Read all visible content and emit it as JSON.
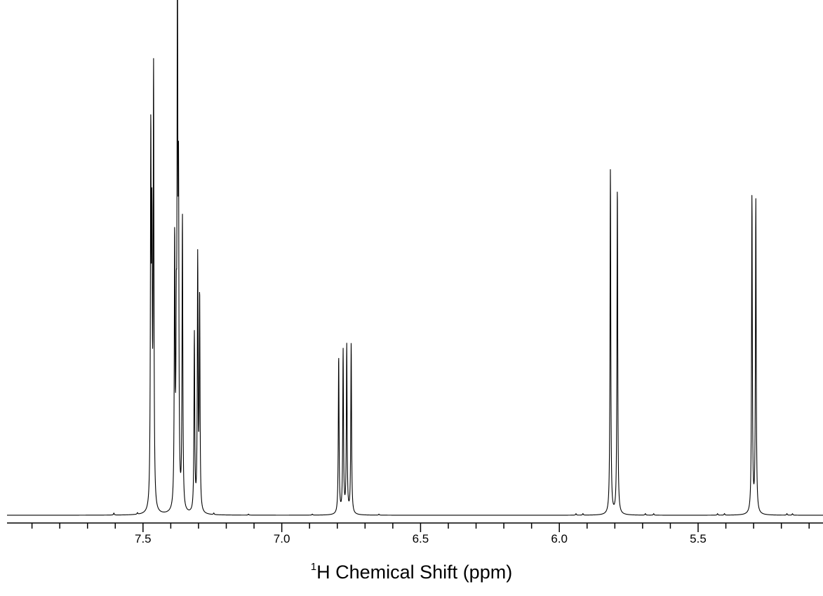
{
  "chart_data": {
    "type": "line",
    "xlabel_sup": "1",
    "xlabel": "H Chemical Shift (ppm)",
    "xlim": [
      7.99,
      5.05
    ],
    "ylim": [
      0,
      100
    ],
    "x_axis_reversed": true,
    "grid": false,
    "x_major_ticks": [
      7.5,
      7.0,
      6.5,
      6.0,
      5.5
    ],
    "x_tick_labels": [
      "7.5",
      "7.0",
      "6.5",
      "6.0",
      "5.5"
    ],
    "x_minor_step": 0.1,
    "baseline": 0,
    "peaks": [
      {
        "x": 7.472,
        "y": 70.5
      },
      {
        "x": 7.468,
        "y": 49.0
      },
      {
        "x": 7.462,
        "y": 85.0
      },
      {
        "x": 7.386,
        "y": 52.0
      },
      {
        "x": 7.38,
        "y": 28.0
      },
      {
        "x": 7.376,
        "y": 100.0
      },
      {
        "x": 7.372,
        "y": 57.0
      },
      {
        "x": 7.358,
        "y": 57.5
      },
      {
        "x": 7.315,
        "y": 35.0
      },
      {
        "x": 7.303,
        "y": 49.5
      },
      {
        "x": 7.296,
        "y": 42.0
      },
      {
        "x": 6.795,
        "y": 31.0
      },
      {
        "x": 6.779,
        "y": 32.0
      },
      {
        "x": 6.766,
        "y": 33.0
      },
      {
        "x": 6.75,
        "y": 33.5
      },
      {
        "x": 5.816,
        "y": 68.0
      },
      {
        "x": 5.791,
        "y": 64.5
      },
      {
        "x": 5.306,
        "y": 62.5
      },
      {
        "x": 5.292,
        "y": 61.5
      },
      {
        "x": 7.605,
        "y": 0.4
      },
      {
        "x": 7.52,
        "y": 0.3
      },
      {
        "x": 7.245,
        "y": 0.3
      },
      {
        "x": 7.12,
        "y": 0.2
      },
      {
        "x": 6.89,
        "y": 0.2
      },
      {
        "x": 6.65,
        "y": 0.2
      },
      {
        "x": 5.94,
        "y": 0.3
      },
      {
        "x": 5.915,
        "y": 0.3
      },
      {
        "x": 5.69,
        "y": 0.3
      },
      {
        "x": 5.66,
        "y": 0.3
      },
      {
        "x": 5.43,
        "y": 0.3
      },
      {
        "x": 5.405,
        "y": 0.3
      },
      {
        "x": 5.18,
        "y": 0.3
      },
      {
        "x": 5.16,
        "y": 0.3
      }
    ]
  }
}
